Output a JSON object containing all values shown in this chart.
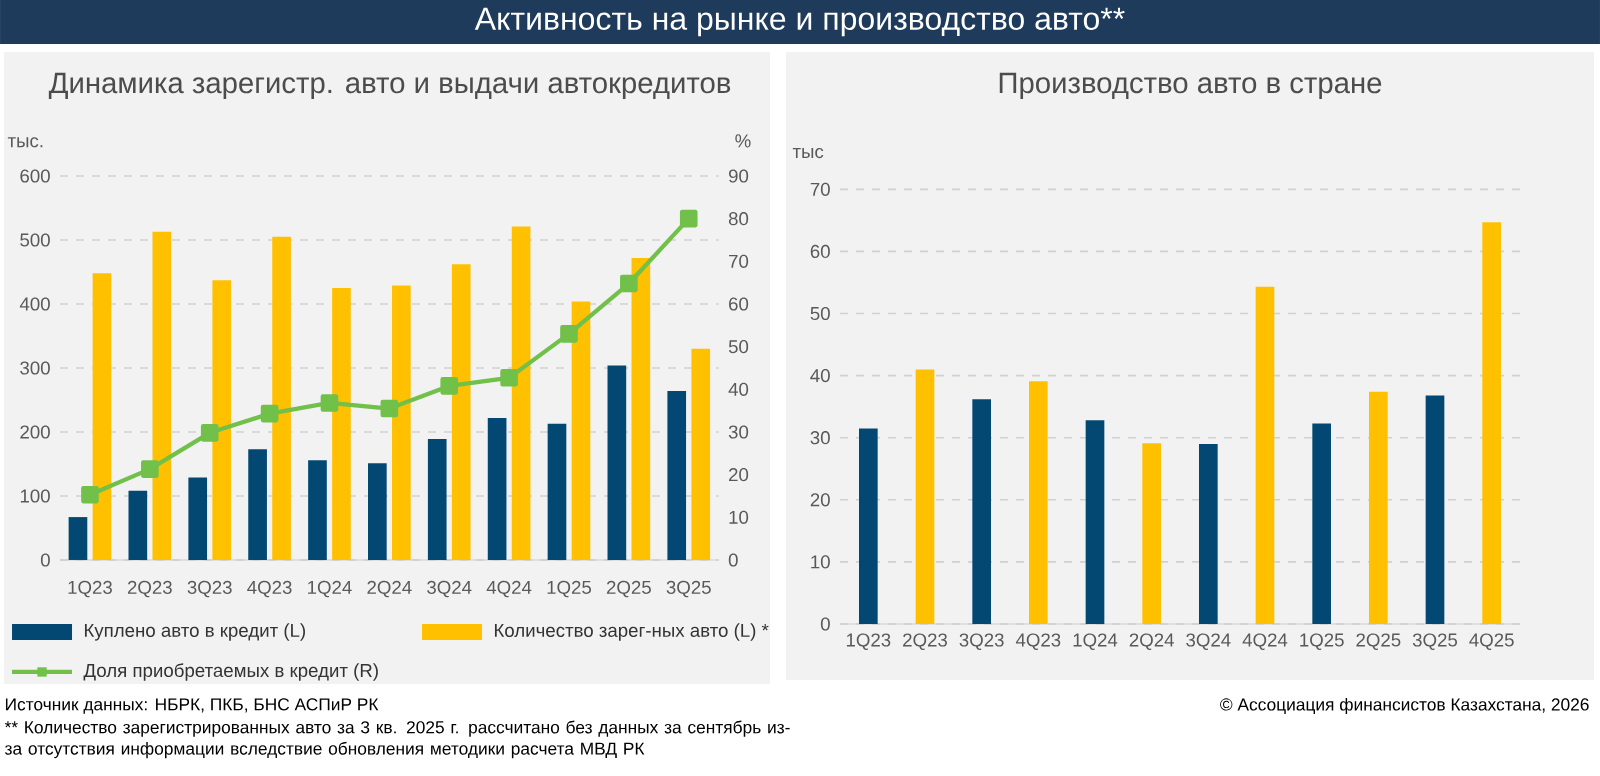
{
  "chart_data": [
    {
      "type": "bar",
      "title": "Динамика зарегистр. авто и выдачи автокредитов",
      "ylabel": "тыс.",
      "y2label": "%",
      "categories": [
        "1Q23",
        "2Q23",
        "3Q23",
        "4Q23",
        "1Q24",
        "2Q24",
        "3Q24",
        "4Q24",
        "1Q25",
        "2Q25",
        "3Q25"
      ],
      "series": [
        {
          "name": "Куплено авто в кредит (L)",
          "type": "bar",
          "color": "#024873",
          "values": [
            67,
            108,
            129,
            173,
            156,
            151,
            189,
            222,
            213,
            304,
            264
          ]
        },
        {
          "name": "Количество зарег-ных авто (L) *",
          "type": "bar",
          "color": "#ffc000",
          "values": [
            448,
            513,
            437,
            505,
            425,
            429,
            462,
            521,
            404,
            472,
            330
          ]
        },
        {
          "name": "Доля приобретаемых в кредит (R)",
          "type": "line",
          "axis": "y2",
          "color": "#70c04a",
          "marker": "square",
          "line_style": "solid",
          "values": [
            15.3,
            21.3,
            29.8,
            34.3,
            36.8,
            35.5,
            40.8,
            42.7,
            53,
            64.8,
            80
          ]
        }
      ],
      "ylim": [
        0,
        600
      ],
      "yticks": [
        0,
        100,
        200,
        300,
        400,
        500,
        600
      ],
      "y2lim": [
        0,
        90
      ],
      "y2ticks": [
        0,
        10,
        20,
        30,
        40,
        50,
        60,
        70,
        80,
        90
      ],
      "grid": "y",
      "legend": "bottom",
      "annotations": [
        "Активность на рынке и производство авто**",
        "Источник данных: НБРК, ПКБ, БНС АСПиР РК",
        "** Количество зарегистрированных авто за 3 кв. 2025 г.  рассчитано без данных за сентябрь из-за отсутствия информации вследствие обновления методики расчета МВД РК"
      ]
    },
    {
      "type": "bar",
      "title": "Производство авто в стране",
      "ylabel": "тыс",
      "categories": [
        "1Q23",
        "2Q23",
        "3Q23",
        "4Q23",
        "1Q24",
        "2Q24",
        "3Q24",
        "4Q24",
        "1Q25",
        "2Q25",
        "3Q25",
        "4Q25"
      ],
      "values": [
        31.5,
        41,
        36.2,
        39.1,
        32.8,
        29.1,
        29,
        54.3,
        32.3,
        37.4,
        36.8,
        64.7
      ],
      "colors": [
        "#024873",
        "#ffc000",
        "#024873",
        "#ffc000",
        "#024873",
        "#ffc000",
        "#024873",
        "#ffc000",
        "#024873",
        "#ffc000",
        "#024873",
        "#ffc000"
      ],
      "ylim": [
        0,
        70
      ],
      "yticks": [
        0,
        10,
        20,
        30,
        40,
        50,
        60,
        70
      ],
      "grid": "y",
      "annotations": [
        "© Ассоциация финансистов Казахстана, 2026"
      ]
    }
  ]
}
